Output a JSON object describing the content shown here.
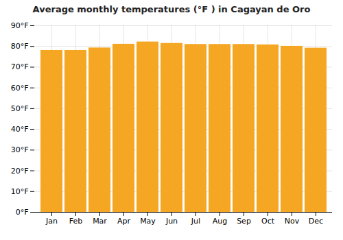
{
  "chart_data": {
    "type": "bar",
    "title": "Average monthly temperatures (°F ) in Cagayan de Oro",
    "categories": [
      "Jan",
      "Feb",
      "Mar",
      "Apr",
      "May",
      "Jun",
      "Jul",
      "Aug",
      "Sep",
      "Oct",
      "Nov",
      "Dec"
    ],
    "values": [
      78.1,
      78.1,
      79.3,
      81.1,
      82.2,
      81.5,
      81.0,
      81.0,
      81.0,
      80.8,
      80.1,
      79.2
    ],
    "color": "#F5A623",
    "ylim": [
      0,
      90
    ],
    "yticks": [
      {
        "value": 0,
        "label": "0°F"
      },
      {
        "value": 10,
        "label": "10°F"
      },
      {
        "value": 20,
        "label": "20°F"
      },
      {
        "value": 30,
        "label": "30°F"
      },
      {
        "value": 40,
        "label": "40°F"
      },
      {
        "value": 50,
        "label": "50°F"
      },
      {
        "value": 60,
        "label": "60°F"
      },
      {
        "value": 70,
        "label": "70°F"
      },
      {
        "value": 80,
        "label": "80°F"
      },
      {
        "value": 90,
        "label": "90°F"
      }
    ],
    "grid": true
  }
}
